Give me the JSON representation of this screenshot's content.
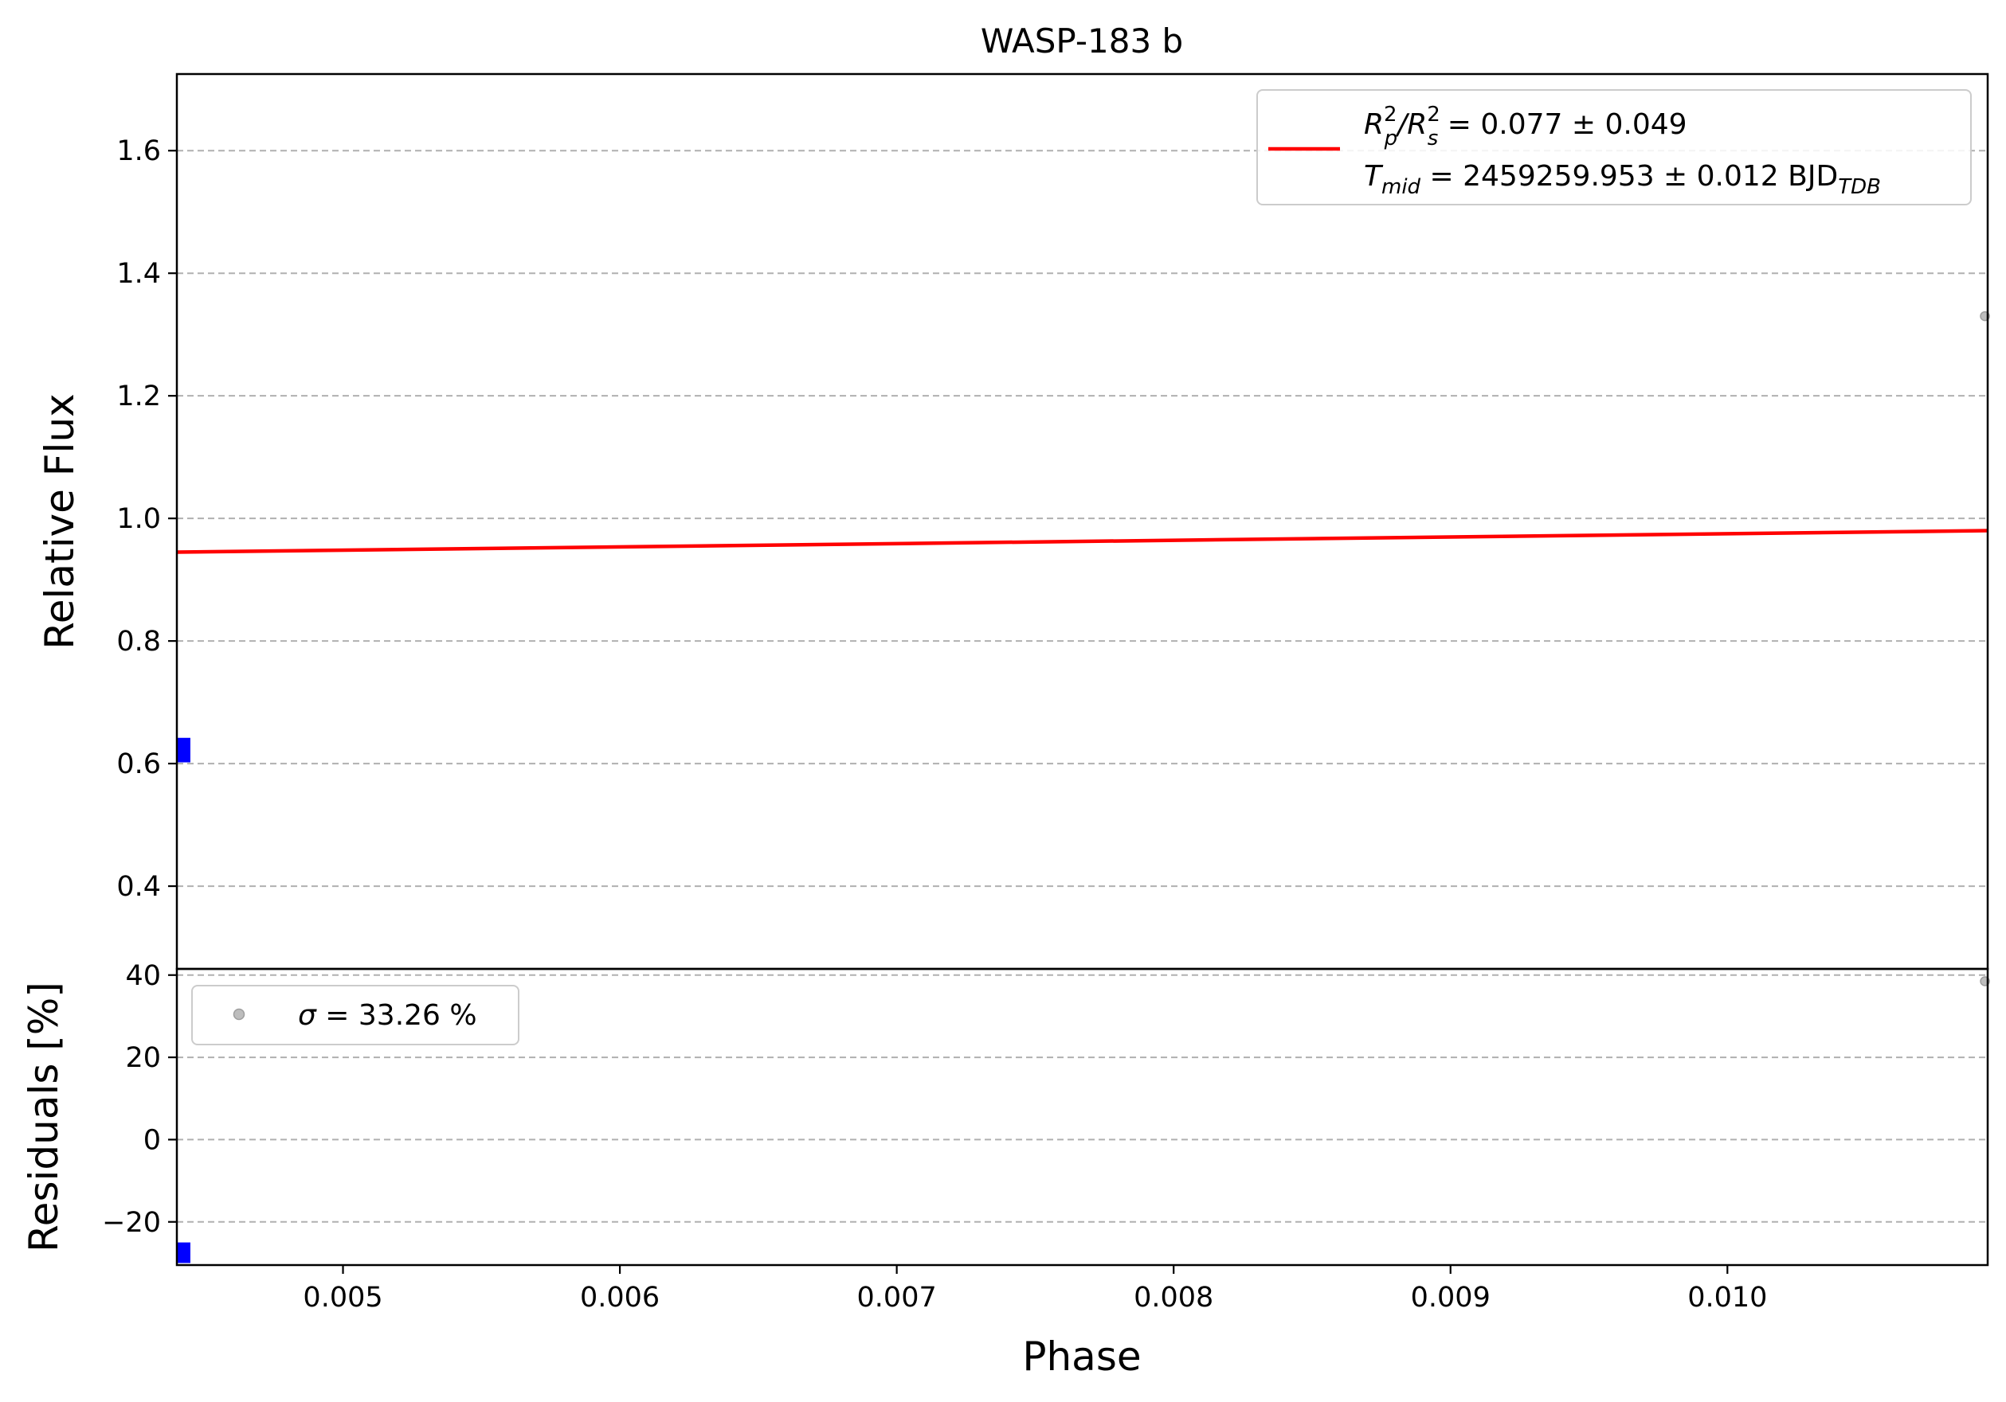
{
  "chart_data": [
    {
      "panel": "main",
      "type": "line",
      "title": "WASP-183 b",
      "xlabel": "",
      "ylabel": "Relative Flux",
      "xlim": [
        0.0044,
        0.01094
      ],
      "ylim": [
        0.265,
        1.725
      ],
      "yticks": [
        0.4,
        0.6,
        0.8,
        1.0,
        1.2,
        1.4,
        1.6
      ],
      "ytick_labels": [
        "0.4",
        "0.6",
        "0.8",
        "1.0",
        "1.2",
        "1.4",
        "1.6"
      ],
      "grid": "y, dashed",
      "legend_placement": "upper right",
      "legend": {
        "line_label_1": "R²p/R²s = 0.077 ± 0.049",
        "ratio_main_1": "R",
        "ratio_sup_1": "2",
        "ratio_sub_1": "p",
        "ratio_slash": "/R",
        "ratio_sup_2": "2",
        "ratio_sub_2": "s",
        "ratio_value": " = 0.077 ± 0.049",
        "tmid_main": "T",
        "tmid_sub": "mid",
        "tmid_value": " = 2459259.953 ± 0.012 BJD",
        "tmid_unit_sub": "TDB"
      },
      "series": [
        {
          "kind": "model",
          "color": "#ff0000",
          "x": [
            0.0044,
            0.01094
          ],
          "y": [
            0.945,
            0.98
          ]
        },
        {
          "kind": "binned",
          "color": "#0000ff",
          "x": [
            0.00442
          ],
          "y": [
            0.622
          ],
          "yerr": [
            0.02
          ]
        },
        {
          "kind": "data",
          "color": "#9e9e9e",
          "x": [
            0.01093
          ],
          "y": [
            1.33
          ]
        }
      ]
    },
    {
      "panel": "residuals",
      "type": "scatter",
      "xlabel": "Phase",
      "ylabel": "Residuals [%]",
      "xlim": [
        0.0044,
        0.01094
      ],
      "ylim": [
        -30.5,
        41.5
      ],
      "xticks": [
        0.005,
        0.006,
        0.007,
        0.008,
        0.009,
        0.01
      ],
      "xtick_labels": [
        "0.005",
        "0.006",
        "0.007",
        "0.008",
        "0.009",
        "0.010"
      ],
      "yticks": [
        -20,
        0,
        20,
        40
      ],
      "ytick_labels": [
        "−20",
        "0",
        "20",
        "40"
      ],
      "grid": "y, dashed",
      "legend_placement": "upper left",
      "legend": {
        "sigma_symbol": "σ",
        "sigma_value": " = 33.26 %"
      },
      "series": [
        {
          "kind": "binned",
          "color": "#0000ff",
          "x": [
            0.00442
          ],
          "y": [
            -27.5
          ],
          "yerr": [
            2.5
          ]
        },
        {
          "kind": "data",
          "color": "#9e9e9e",
          "x": [
            0.01093
          ],
          "y": [
            38.5
          ]
        }
      ]
    }
  ]
}
